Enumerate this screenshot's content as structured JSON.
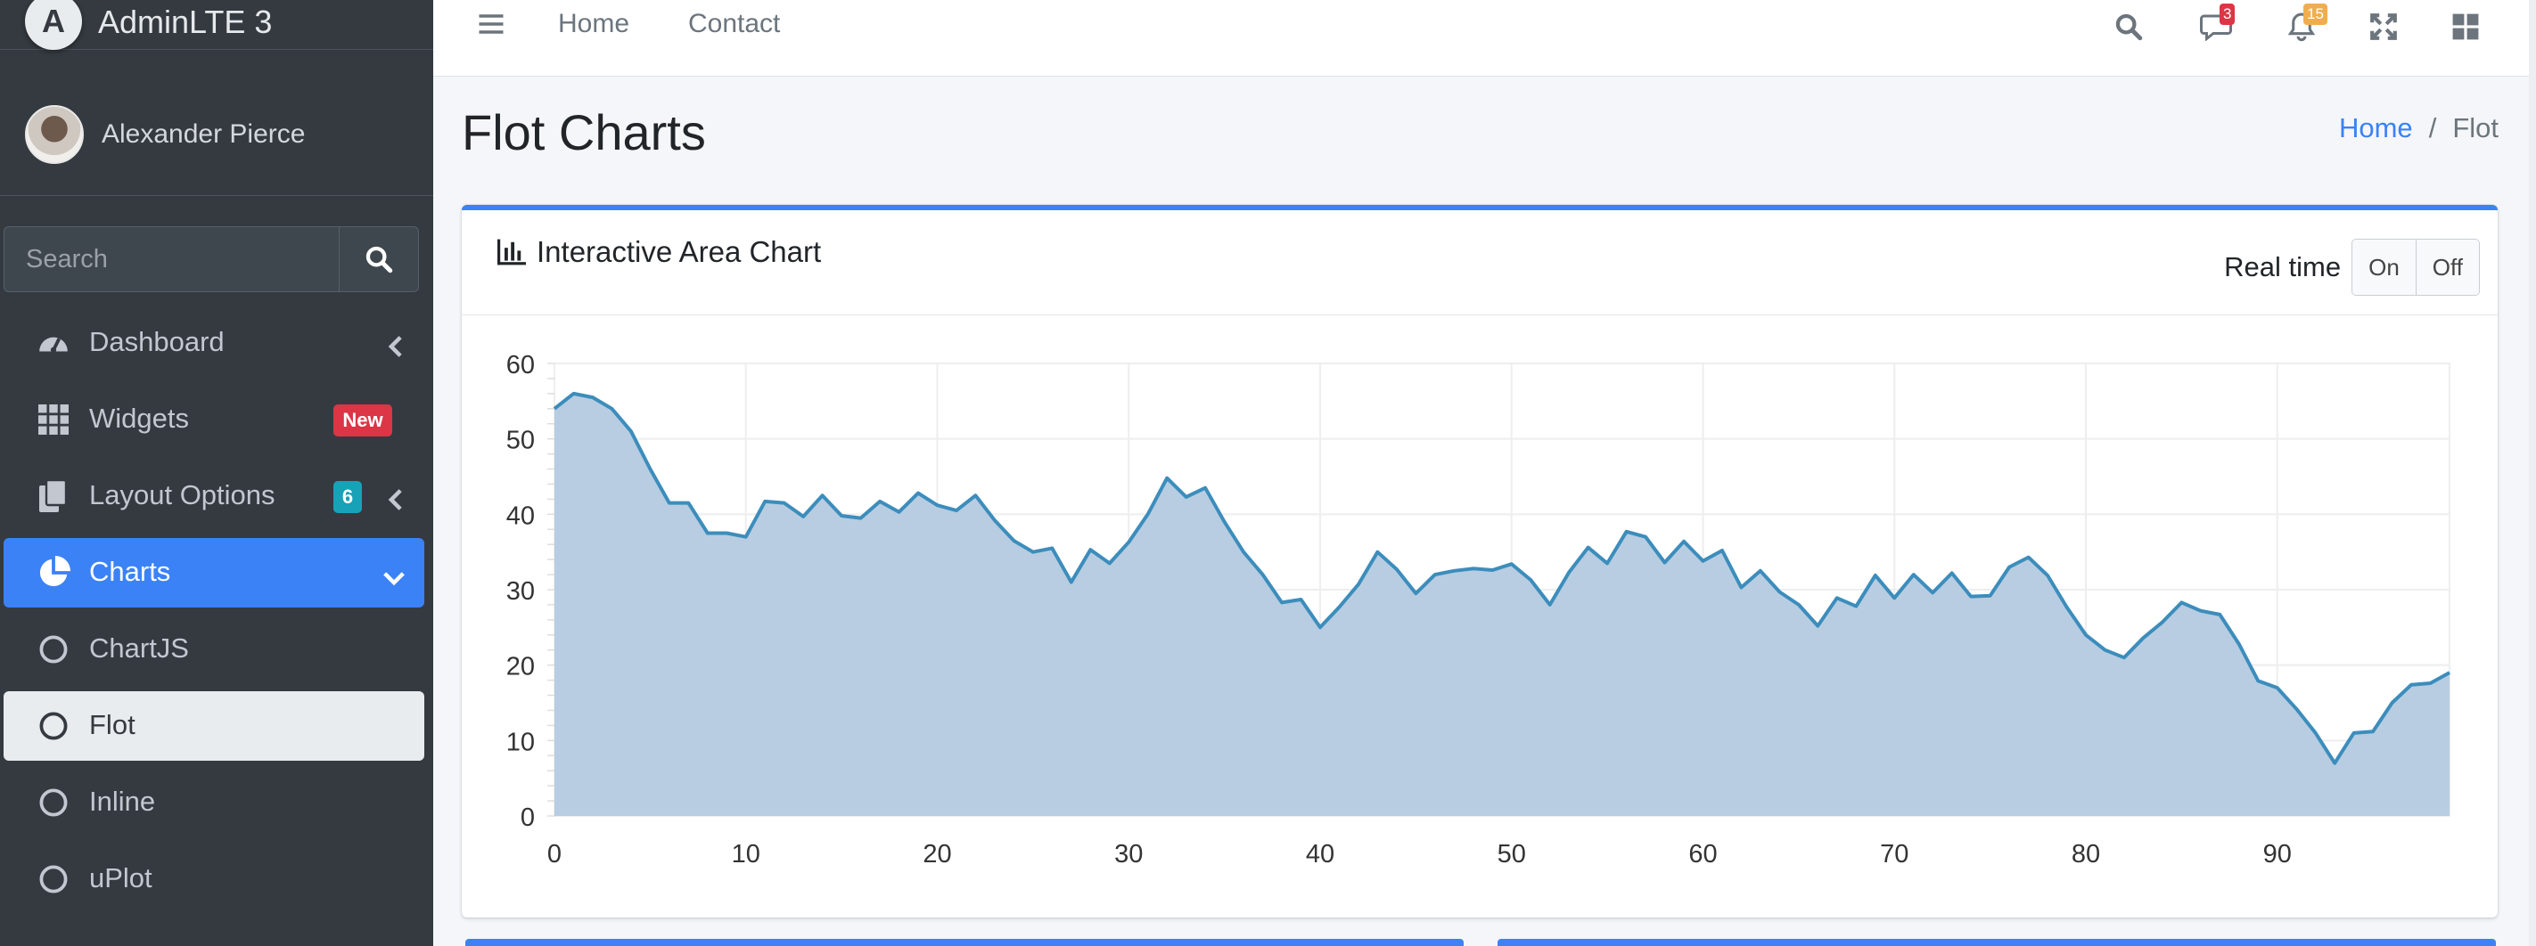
{
  "brand": {
    "name": "AdminLTE 3",
    "logo_letter": "A"
  },
  "user": {
    "name": "Alexander Pierce"
  },
  "sidebar": {
    "search_placeholder": "Search",
    "items": [
      {
        "label": "Dashboard",
        "icon": "tachometer-icon"
      },
      {
        "label": "Widgets",
        "icon": "grid-icon",
        "badge": "New"
      },
      {
        "label": "Layout Options",
        "icon": "copy-icon",
        "badge": "6"
      },
      {
        "label": "Charts",
        "icon": "pie-chart-icon"
      },
      {
        "label": "ChartJS",
        "icon": "circle-icon"
      },
      {
        "label": "Flot",
        "icon": "circle-icon"
      },
      {
        "label": "Inline",
        "icon": "circle-icon"
      },
      {
        "label": "uPlot",
        "icon": "circle-icon"
      }
    ]
  },
  "topbar": {
    "links": [
      "Home",
      "Contact"
    ],
    "messages_count": "3",
    "notifications_count": "15"
  },
  "page": {
    "title": "Flot Charts",
    "breadcrumb": [
      "Home",
      "Flot"
    ]
  },
  "card": {
    "title": "Interactive Area Chart",
    "realtime_label": "Real time",
    "on_label": "On",
    "off_label": "Off"
  },
  "colors": {
    "sidebar_bg": "#343a40",
    "accent": "#3b82f6",
    "series_line": "#3c8dbc",
    "series_fill": "#b8cde1"
  },
  "chart_data": {
    "type": "area",
    "xlim": [
      0,
      99
    ],
    "ylim": [
      0,
      60
    ],
    "x_ticks": [
      0,
      10,
      20,
      30,
      40,
      50,
      60,
      70,
      80,
      90
    ],
    "y_ticks": [
      0,
      10,
      20,
      30,
      40,
      50,
      60
    ],
    "grid": true,
    "series": [
      {
        "values": [
          54,
          56,
          55.5,
          54,
          51,
          46,
          41.5,
          41.5,
          37.5,
          37.5,
          37,
          41.7,
          41.5,
          39.7,
          42.5,
          39.8,
          39.5,
          41.7,
          40.3,
          42.8,
          41.2,
          40.5,
          42.5,
          39.2,
          36.5,
          35,
          35.5,
          31,
          35.3,
          33.5,
          36.3,
          40,
          44.8,
          42.3,
          43.5,
          39,
          35,
          32,
          28.3,
          28.7,
          25,
          27.7,
          30.7,
          35,
          32.7,
          29.5,
          32,
          32.5,
          32.8,
          32.6,
          33.4,
          31.3,
          28,
          32.3,
          35.6,
          33.5,
          37.7,
          37,
          33.6,
          36.4,
          33.8,
          35.2,
          30.3,
          32.5,
          29.7,
          28,
          25.2,
          28.9,
          27.8,
          31.9,
          28.9,
          32,
          29.6,
          32.2,
          29.1,
          29.2,
          33,
          34.3,
          31.9,
          27.7,
          24,
          22,
          21,
          23.6,
          25.7,
          28.3,
          27.2,
          26.7,
          22.8,
          17.9,
          17,
          14.2,
          11,
          7,
          11,
          11.2,
          15,
          17.4,
          17.6,
          19
        ]
      }
    ]
  }
}
